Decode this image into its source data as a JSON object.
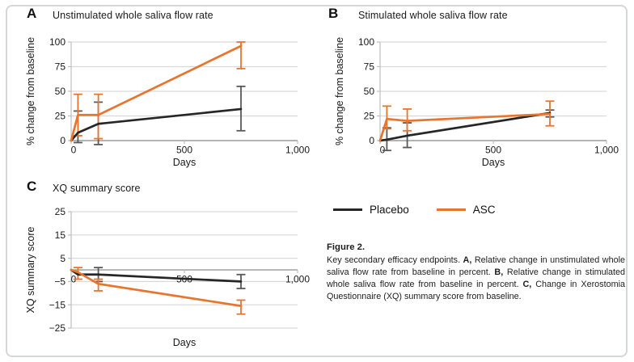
{
  "figure": {
    "legend": {
      "items": [
        {
          "label": "Placebo",
          "color_key": "placebo"
        },
        {
          "label": "ASC",
          "color_key": "asc"
        }
      ]
    },
    "caption": {
      "heading": "Figure 2.",
      "segments": [
        {
          "text": "Key secondary efficacy endpoints. ",
          "bold": false
        },
        {
          "text": "A,",
          "bold": true
        },
        {
          "text": " Relative change in unstimulated whole saliva flow rate from baseline in percent. ",
          "bold": false
        },
        {
          "text": "B,",
          "bold": true
        },
        {
          "text": " Relative change in stimulated whole saliva flow rate from baseline in percent. ",
          "bold": false
        },
        {
          "text": "C,",
          "bold": true
        },
        {
          "text": " Change in Xerostomia Questionnaire (XQ) summary score from baseline.",
          "bold": false
        }
      ]
    }
  },
  "colors": {
    "placebo": "#262626",
    "placebo_error": "#595959",
    "asc": "#E8752E",
    "grid": "#D9D9D9",
    "axis": "#BFBFBF",
    "zero_axis": "#8C8C8C",
    "text": "#1a1a1a"
  },
  "chart_data": [
    {
      "id": "A",
      "type": "line",
      "panel": "A",
      "title": "Unstimulated whole saliva flow rate",
      "xlabel": "Days",
      "ylabel": "% change from baseline",
      "xlim": [
        0,
        1000
      ],
      "ylim": [
        0,
        100
      ],
      "xticks": {
        "values": [
          0,
          500,
          1000
        ],
        "labels": [
          "0",
          "500",
          "1,000"
        ]
      },
      "yticks": {
        "values": [
          0,
          25,
          50,
          75,
          100
        ],
        "labels": [
          "0",
          "25",
          "50",
          "75",
          "100"
        ]
      },
      "grid": "horizontal",
      "legend_position": "none",
      "xlabels_at_zero": false,
      "series": [
        {
          "name": "Placebo",
          "color_key": "placebo",
          "error_color_key": "placebo_error",
          "points": [
            [
              0,
              0
            ],
            [
              30,
              8
            ],
            [
              120,
              17
            ],
            [
              750,
              32
            ]
          ],
          "error_bars": [
            {
              "x": 30,
              "low": -2,
              "high": 30
            },
            {
              "x": 120,
              "low": -4,
              "high": 39
            },
            {
              "x": 750,
              "low": 10,
              "high": 55
            }
          ]
        },
        {
          "name": "ASC",
          "color_key": "asc",
          "error_color_key": "asc",
          "points": [
            [
              0,
              0
            ],
            [
              30,
              26
            ],
            [
              120,
              26
            ],
            [
              750,
              96
            ]
          ],
          "error_bars": [
            {
              "x": 30,
              "low": 5,
              "high": 47
            },
            {
              "x": 120,
              "low": 2,
              "high": 47
            },
            {
              "x": 750,
              "low": 73,
              "high": 100
            }
          ]
        }
      ]
    },
    {
      "id": "B",
      "type": "line",
      "panel": "B",
      "title": "Stimulated whole saliva flow rate",
      "xlabel": "Days",
      "ylabel": "% change from baseline",
      "xlim": [
        0,
        1000
      ],
      "ylim": [
        0,
        100
      ],
      "xticks": {
        "values": [
          0,
          500,
          1000
        ],
        "labels": [
          "0",
          "500",
          "1,000"
        ]
      },
      "yticks": {
        "values": [
          0,
          25,
          50,
          75,
          100
        ],
        "labels": [
          "0",
          "25",
          "50",
          "75",
          "100"
        ]
      },
      "grid": "horizontal",
      "legend_position": "none",
      "xlabels_at_zero": false,
      "series": [
        {
          "name": "Placebo",
          "color_key": "placebo",
          "error_color_key": "placebo_error",
          "points": [
            [
              0,
              0
            ],
            [
              30,
              1
            ],
            [
              120,
              5
            ],
            [
              750,
              28
            ]
          ],
          "error_bars": [
            {
              "x": 30,
              "low": -10,
              "high": 13
            },
            {
              "x": 120,
              "low": -7,
              "high": 18
            },
            {
              "x": 750,
              "low": 24,
              "high": 31
            }
          ]
        },
        {
          "name": "ASC",
          "color_key": "asc",
          "error_color_key": "asc",
          "points": [
            [
              0,
              0
            ],
            [
              30,
              22
            ],
            [
              120,
              20
            ],
            [
              750,
              27
            ]
          ],
          "error_bars": [
            {
              "x": 30,
              "low": 12,
              "high": 35
            },
            {
              "x": 120,
              "low": 10,
              "high": 32
            },
            {
              "x": 750,
              "low": 15,
              "high": 40
            }
          ]
        }
      ]
    },
    {
      "id": "C",
      "type": "line",
      "panel": "C",
      "title": "XQ summary score",
      "xlabel": "Days",
      "ylabel": "XQ summary score",
      "xlim": [
        0,
        1000
      ],
      "ylim": [
        -25,
        25
      ],
      "xticks": {
        "values": [
          0,
          500,
          1000
        ],
        "labels": [
          "0",
          "500",
          "1,000"
        ]
      },
      "yticks": {
        "values": [
          -25,
          -15,
          -5,
          5,
          15,
          25
        ],
        "labels": [
          "−25",
          "−15",
          "−5",
          "5",
          "15",
          "25"
        ]
      },
      "grid": "horizontal",
      "legend_position": "none",
      "xlabels_at_zero": true,
      "series": [
        {
          "name": "Placebo",
          "color_key": "placebo",
          "error_color_key": "placebo_error",
          "points": [
            [
              0,
              0
            ],
            [
              30,
              -2
            ],
            [
              120,
              -2
            ],
            [
              750,
              -5
            ]
          ],
          "error_bars": [
            {
              "x": 120,
              "low": -5,
              "high": 1
            },
            {
              "x": 750,
              "low": -8,
              "high": -2
            }
          ]
        },
        {
          "name": "ASC",
          "color_key": "asc",
          "error_color_key": "asc",
          "points": [
            [
              0,
              0
            ],
            [
              30,
              -1
            ],
            [
              120,
              -6
            ],
            [
              750,
              -15.5
            ]
          ],
          "error_bars": [
            {
              "x": 30,
              "low": -4,
              "high": 1
            },
            {
              "x": 120,
              "low": -9,
              "high": -4
            },
            {
              "x": 750,
              "low": -19,
              "high": -13
            }
          ]
        }
      ]
    }
  ]
}
